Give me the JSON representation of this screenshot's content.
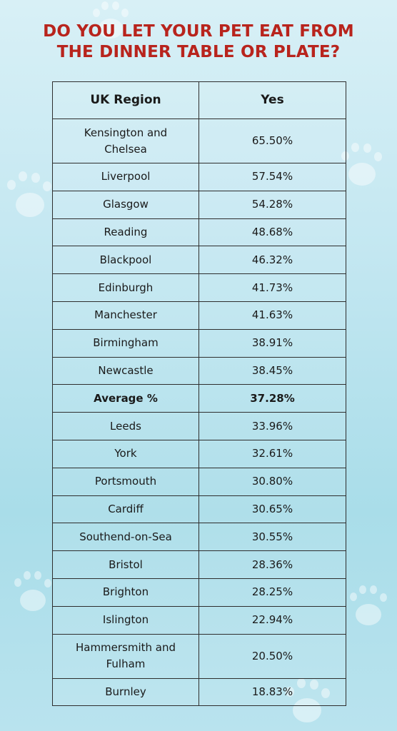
{
  "title": {
    "line1": "DO YOU LET YOUR PET EAT FROM",
    "line2": "THE DINNER TABLE OR PLATE?"
  },
  "colors": {
    "title": "#b8241d",
    "background": "#c3e7f1",
    "border": "#2e2e2e"
  },
  "table": {
    "headers": [
      "UK Region",
      "Yes"
    ],
    "rows": [
      {
        "region": "Kensington and Chelsea",
        "value": "65.50%"
      },
      {
        "region": "Liverpool",
        "value": "57.54%"
      },
      {
        "region": "Glasgow",
        "value": "54.28%"
      },
      {
        "region": "Reading",
        "value": "48.68%"
      },
      {
        "region": "Blackpool",
        "value": "46.32%"
      },
      {
        "region": "Edinburgh",
        "value": "41.73%"
      },
      {
        "region": "Manchester",
        "value": "41.63%"
      },
      {
        "region": "Birmingham",
        "value": "38.91%"
      },
      {
        "region": "Newcastle",
        "value": "38.45%"
      },
      {
        "region": "Average %",
        "value": "37.28%"
      },
      {
        "region": "Leeds",
        "value": "33.96%"
      },
      {
        "region": "York",
        "value": "32.61%"
      },
      {
        "region": "Portsmouth",
        "value": "30.80%"
      },
      {
        "region": "Cardiff",
        "value": "30.65%"
      },
      {
        "region": "Southend-on-Sea",
        "value": "30.55%"
      },
      {
        "region": "Bristol",
        "value": "28.36%"
      },
      {
        "region": "Brighton",
        "value": "28.25%"
      },
      {
        "region": "Islington",
        "value": "22.94%"
      },
      {
        "region": "Hammersmith and Fulham",
        "value": "20.50%"
      },
      {
        "region": "Burnley",
        "value": "18.83%"
      }
    ]
  }
}
